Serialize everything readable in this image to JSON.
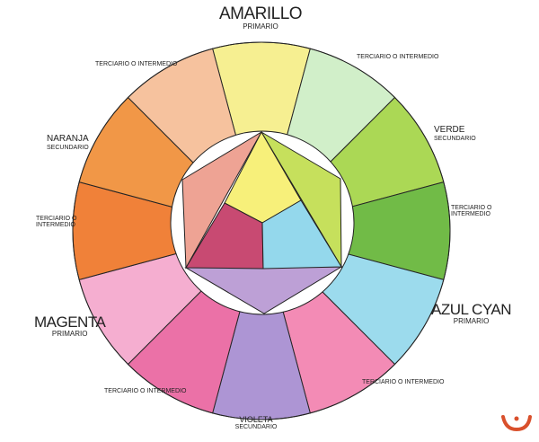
{
  "labels": {
    "amarillo": {
      "name": "AMARILLO",
      "type": "PRIMARIO"
    },
    "verde": {
      "name": "VERDE",
      "type": "SECUNDARIO"
    },
    "azul": {
      "name": "AZUL CYAN",
      "type": "PRIMARIO"
    },
    "violeta": {
      "name": "VIOLETA",
      "type": "SECUNDARIO"
    },
    "magenta": {
      "name": "MAGENTA",
      "type": "PRIMARIO"
    },
    "naranja": {
      "name": "NARANJA",
      "type": "SECUNDARIO"
    },
    "terciario_top_left": "TERCIARIO O INTERMEDIO",
    "terciario_top_right": "TERCIARIO O INTERMEDIO",
    "terciario_right": [
      "TERCIARIO O",
      "INTERMEDIO"
    ],
    "terciario_bottom_right": "TERCIARIO O INTERMEDIO",
    "terciario_bottom_left": "TERCIARIO O INTERMEDIO",
    "terciario_left": [
      "TERCIARIO O",
      "INTERMEDIO"
    ]
  },
  "wheel_colors": [
    "#f6ee86",
    "#cdeec4",
    "#a3d443",
    "#62b434",
    "#92d8ec",
    "#f27fae",
    "#a58ad0",
    "#e9629e",
    "#f4a6cc",
    "#ef7424",
    "#f08c34",
    "#f6bc94"
  ],
  "inner_colors": {
    "yellow": "#f7f07a",
    "crimson": "#c84a72",
    "cyan": "#94d8ec",
    "lavender": "#bda0d6",
    "peach": "#eea394",
    "yellow_green": "#c6e05c"
  },
  "logo_color": "#d9502c"
}
